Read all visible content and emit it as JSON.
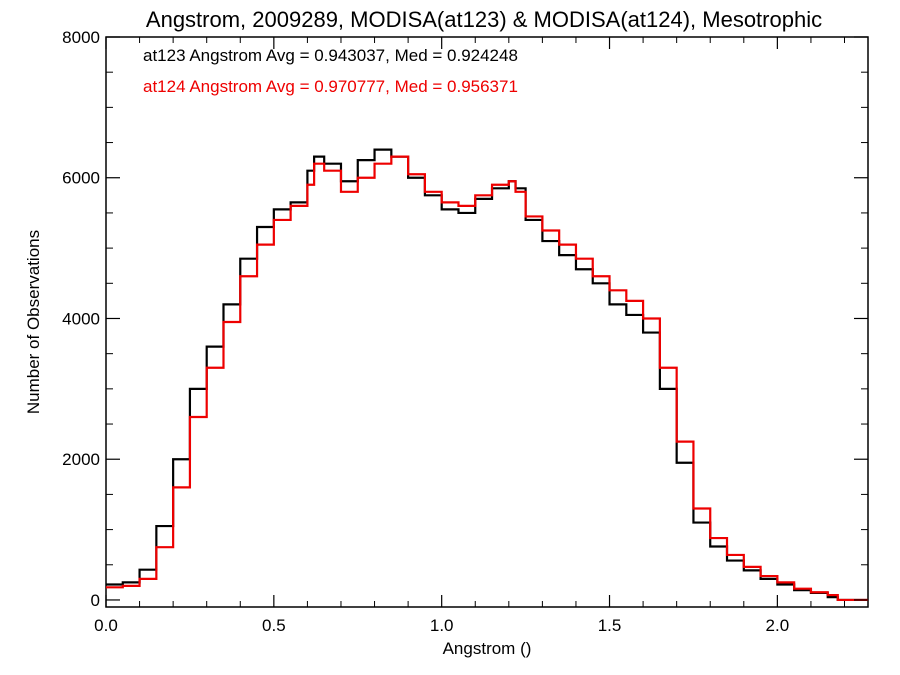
{
  "chart_data": {
    "type": "line",
    "title": "Angstrom, 2009289, MODISA(at123) & MODISA(at124), Mesotrophic",
    "xlabel": "Angstrom ()",
    "ylabel": "Number of Observations",
    "xlim": [
      0.0,
      2.27
    ],
    "ylim": [
      -100,
      8000
    ],
    "x_ticks": [
      0.0,
      0.5,
      1.0,
      1.5,
      2.0
    ],
    "x_tick_labels": [
      "0.0",
      "0.5",
      "1.0",
      "1.5",
      "2.0"
    ],
    "y_ticks": [
      0,
      2000,
      4000,
      6000,
      8000
    ],
    "y_tick_labels": [
      "0",
      "2000",
      "4000",
      "6000",
      "8000"
    ],
    "grid": false,
    "legend_placement": "top-left",
    "annotations": [
      {
        "text": "at123 Angstrom Avg = 0.943037, Med = 0.924248",
        "color": "#000000"
      },
      {
        "text": "at124 Angstrom Avg = 0.970777, Med = 0.956371",
        "color": "#ee0000"
      }
    ],
    "series": [
      {
        "color": "#000000",
        "style": "step",
        "x": [
          0.0,
          0.05,
          0.1,
          0.15,
          0.2,
          0.25,
          0.3,
          0.35,
          0.4,
          0.45,
          0.5,
          0.55,
          0.6,
          0.62,
          0.65,
          0.7,
          0.75,
          0.8,
          0.85,
          0.9,
          0.95,
          1.0,
          1.05,
          1.1,
          1.15,
          1.2,
          1.22,
          1.25,
          1.3,
          1.35,
          1.4,
          1.45,
          1.5,
          1.55,
          1.6,
          1.65,
          1.7,
          1.75,
          1.8,
          1.85,
          1.9,
          1.95,
          2.0,
          2.05,
          2.1,
          2.15,
          2.18,
          2.27
        ],
        "y": [
          220,
          250,
          430,
          1050,
          2000,
          3000,
          3600,
          4200,
          4850,
          5300,
          5550,
          5650,
          6100,
          6300,
          6200,
          5950,
          6250,
          6400,
          6300,
          6000,
          5750,
          5550,
          5500,
          5700,
          5850,
          5950,
          5850,
          5400,
          5100,
          4900,
          4700,
          4500,
          4200,
          4050,
          3800,
          3000,
          1950,
          1100,
          760,
          560,
          420,
          300,
          220,
          140,
          100,
          40,
          0,
          0
        ]
      },
      {
        "color": "#ee0000",
        "style": "step",
        "x": [
          0.0,
          0.05,
          0.1,
          0.15,
          0.2,
          0.25,
          0.3,
          0.35,
          0.4,
          0.45,
          0.5,
          0.55,
          0.6,
          0.62,
          0.65,
          0.7,
          0.75,
          0.8,
          0.85,
          0.9,
          0.95,
          1.0,
          1.05,
          1.1,
          1.15,
          1.2,
          1.22,
          1.25,
          1.3,
          1.35,
          1.4,
          1.45,
          1.5,
          1.55,
          1.6,
          1.65,
          1.7,
          1.75,
          1.8,
          1.85,
          1.9,
          1.95,
          2.0,
          2.05,
          2.1,
          2.15,
          2.18,
          2.27
        ],
        "y": [
          180,
          200,
          300,
          750,
          1600,
          2600,
          3300,
          3950,
          4600,
          5050,
          5400,
          5600,
          5900,
          6200,
          6100,
          5800,
          6000,
          6200,
          6300,
          6050,
          5800,
          5650,
          5600,
          5750,
          5900,
          5950,
          5800,
          5450,
          5250,
          5050,
          4850,
          4600,
          4400,
          4250,
          4000,
          3300,
          2250,
          1300,
          880,
          640,
          470,
          340,
          250,
          160,
          110,
          70,
          0,
          0
        ]
      }
    ]
  }
}
